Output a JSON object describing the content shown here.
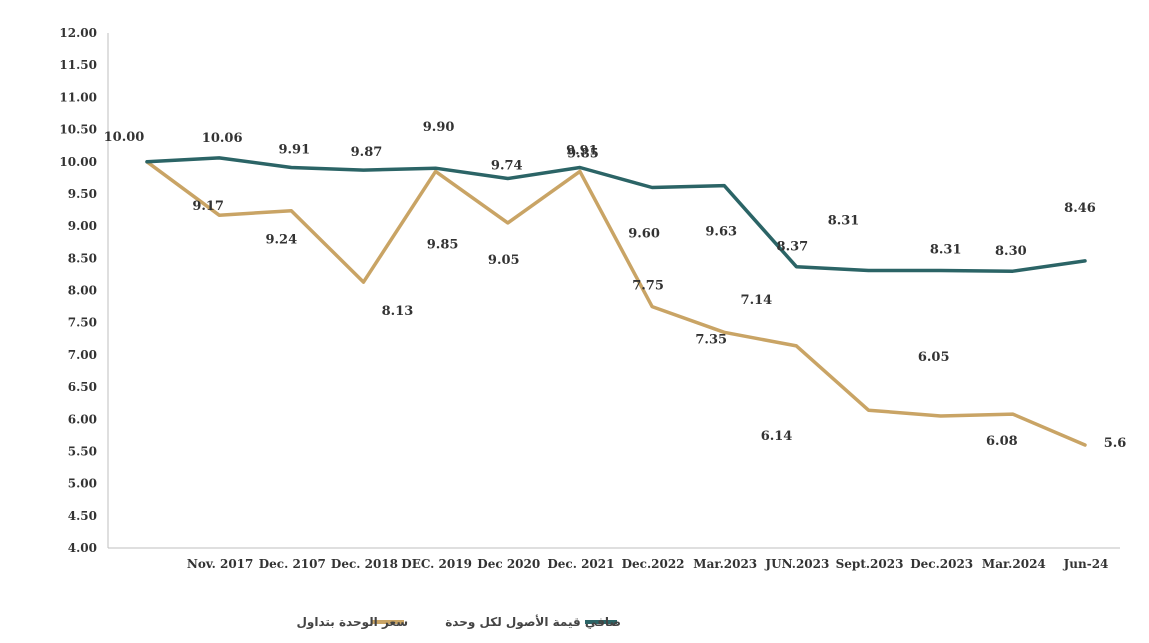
{
  "chart_data": {
    "type": "line",
    "categories": [
      "",
      "Nov. 2017",
      "Dec. 2107",
      "Dec. 2018",
      "DEC. 2019",
      "Dec 2020",
      "Dec. 2021",
      "Dec.2022",
      "Mar.2023",
      "JUN.2023",
      "Sept.2023",
      "Dec.2023",
      "Mar.2024",
      "Jun-24"
    ],
    "y_ticks": [
      "4.00",
      "4.50",
      "5.00",
      "5.50",
      "6.00",
      "6.50",
      "7.00",
      "7.50",
      "8.00",
      "8.50",
      "9.00",
      "9.50",
      "10.00",
      "10.50",
      "11.00",
      "11.50",
      "12.00"
    ],
    "ylim": [
      4,
      12
    ],
    "grid": false,
    "legend_position": "bottom",
    "series": [
      {
        "name": "سعر الوحدة بتداول",
        "color": "#C9A465",
        "values": [
          10.0,
          9.17,
          9.24,
          8.13,
          9.85,
          9.05,
          9.85,
          7.75,
          7.35,
          7.14,
          6.14,
          6.05,
          6.08,
          5.6
        ],
        "labels": [
          "10.00",
          "9.17",
          "9.24",
          "8.13",
          "9.85",
          "9.05",
          "9.85",
          "7.75",
          "7.35",
          "7.14",
          "6.14",
          "6.05",
          "6.08",
          "5.6"
        ]
      },
      {
        "name": "صافي قيمة الأصول لكل وحدة",
        "color": "#2B6466",
        "values": [
          10.0,
          10.06,
          9.91,
          9.87,
          9.9,
          9.74,
          9.91,
          9.6,
          9.63,
          8.37,
          8.31,
          8.31,
          8.3,
          8.46
        ],
        "labels": [
          "",
          "10.06",
          "9.91",
          "9.87",
          "9.90",
          "9.74",
          "9.91",
          "9.60",
          "9.63",
          "8.37",
          "8.31",
          "8.31",
          "8.30",
          "8.46"
        ]
      }
    ]
  }
}
